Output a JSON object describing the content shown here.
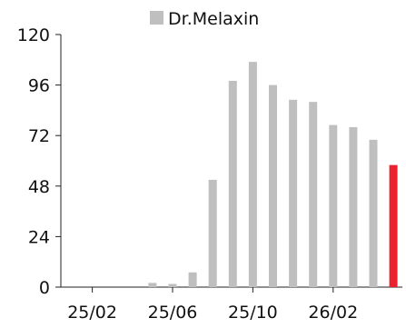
{
  "chart_data": {
    "type": "bar",
    "categories": [
      "25/01",
      "25/02",
      "25/03",
      "25/04",
      "25/05",
      "25/06",
      "25/07",
      "25/08",
      "25/09",
      "25/10",
      "25/11",
      "25/12",
      "26/01",
      "26/02",
      "26/03",
      "26/04",
      "26/05"
    ],
    "values": [
      0,
      0,
      0,
      0,
      2,
      1.5,
      7,
      51,
      98,
      107,
      96,
      89,
      88,
      77,
      76,
      70,
      58
    ],
    "x_tick_labels": [
      "25/02",
      "25/06",
      "25/10",
      "26/02"
    ],
    "x_tick_categories": [
      "25/02",
      "25/06",
      "25/10",
      "26/02"
    ],
    "y_ticks": [
      0,
      24,
      48,
      72,
      96,
      120
    ],
    "ylim": [
      0,
      120
    ],
    "title": "",
    "xlabel": "",
    "ylabel": "",
    "series": [
      {
        "name": "Dr.Melaxin",
        "color": "#bfbfbf"
      }
    ],
    "highlight": {
      "category": "26/05",
      "color": "#e8232f"
    },
    "legend_position": "top-center",
    "grid": false
  }
}
